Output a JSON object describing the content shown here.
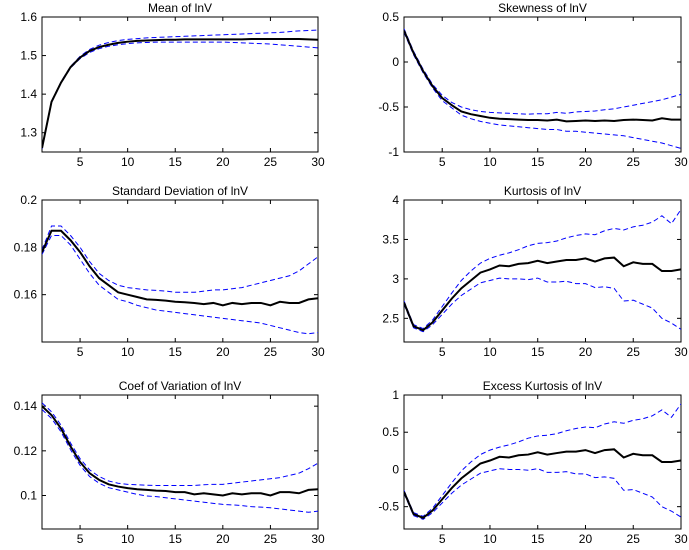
{
  "figure": {
    "background": "#ffffff",
    "series_colors": {
      "mean": "#000000",
      "bands": "#0000ff"
    }
  },
  "chart_data": [
    {
      "type": "line",
      "title": "Mean of lnV",
      "xlim": [
        1,
        30
      ],
      "ylim": [
        1.25,
        1.6
      ],
      "xticks": [
        5,
        10,
        15,
        20,
        25,
        30
      ],
      "yticks": [
        1.3,
        1.4,
        1.5,
        1.6
      ],
      "x": [
        1,
        2,
        3,
        4,
        5,
        6,
        7,
        8,
        9,
        10,
        11,
        12,
        13,
        14,
        15,
        16,
        17,
        18,
        19,
        20,
        21,
        22,
        23,
        24,
        25,
        26,
        27,
        28,
        29,
        30
      ],
      "series": [
        {
          "style": "solid",
          "color": "#000000",
          "values": [
            1.26,
            1.38,
            1.43,
            1.47,
            1.495,
            1.512,
            1.522,
            1.528,
            1.533,
            1.536,
            1.538,
            1.539,
            1.54,
            1.541,
            1.541,
            1.542,
            1.542,
            1.542,
            1.542,
            1.542,
            1.542,
            1.542,
            1.543,
            1.543,
            1.543,
            1.543,
            1.543,
            1.543,
            1.542,
            1.541
          ]
        },
        {
          "style": "dashed",
          "color": "#0000ff",
          "values": [
            1.262,
            1.382,
            1.432,
            1.472,
            1.498,
            1.516,
            1.527,
            1.534,
            1.539,
            1.542,
            1.544,
            1.546,
            1.547,
            1.548,
            1.549,
            1.55,
            1.551,
            1.552,
            1.553,
            1.554,
            1.555,
            1.556,
            1.557,
            1.558,
            1.559,
            1.56,
            1.562,
            1.564,
            1.565,
            1.566
          ]
        },
        {
          "style": "dashed",
          "color": "#0000ff",
          "values": [
            1.258,
            1.378,
            1.428,
            1.468,
            1.492,
            1.508,
            1.518,
            1.524,
            1.528,
            1.531,
            1.533,
            1.534,
            1.535,
            1.535,
            1.535,
            1.535,
            1.535,
            1.535,
            1.535,
            1.535,
            1.534,
            1.533,
            1.532,
            1.531,
            1.53,
            1.528,
            1.526,
            1.524,
            1.522,
            1.52
          ]
        }
      ]
    },
    {
      "type": "line",
      "title": "Skewness of lnV",
      "xlim": [
        1,
        30
      ],
      "ylim": [
        -1,
        0.5
      ],
      "xticks": [
        5,
        10,
        15,
        20,
        25,
        30
      ],
      "yticks": [
        -1,
        -0.5,
        0,
        0.5
      ],
      "x": [
        1,
        2,
        3,
        4,
        5,
        6,
        7,
        8,
        9,
        10,
        11,
        12,
        13,
        14,
        15,
        16,
        17,
        18,
        19,
        20,
        21,
        22,
        23,
        24,
        25,
        26,
        27,
        28,
        29,
        30
      ],
      "series": [
        {
          "style": "solid",
          "color": "#000000",
          "values": [
            0.35,
            0.1,
            -0.1,
            -0.27,
            -0.4,
            -0.48,
            -0.55,
            -0.58,
            -0.6,
            -0.62,
            -0.63,
            -0.635,
            -0.64,
            -0.645,
            -0.645,
            -0.65,
            -0.64,
            -0.66,
            -0.655,
            -0.65,
            -0.655,
            -0.65,
            -0.655,
            -0.645,
            -0.64,
            -0.645,
            -0.65,
            -0.625,
            -0.64,
            -0.64
          ]
        },
        {
          "style": "dashed",
          "color": "#0000ff",
          "values": [
            0.37,
            0.12,
            -0.08,
            -0.25,
            -0.37,
            -0.45,
            -0.5,
            -0.53,
            -0.55,
            -0.56,
            -0.565,
            -0.57,
            -0.575,
            -0.58,
            -0.575,
            -0.575,
            -0.56,
            -0.57,
            -0.555,
            -0.55,
            -0.545,
            -0.53,
            -0.52,
            -0.5,
            -0.48,
            -0.46,
            -0.44,
            -0.42,
            -0.39,
            -0.36
          ]
        },
        {
          "style": "dashed",
          "color": "#0000ff",
          "values": [
            0.33,
            0.08,
            -0.12,
            -0.29,
            -0.43,
            -0.51,
            -0.59,
            -0.63,
            -0.66,
            -0.68,
            -0.7,
            -0.71,
            -0.72,
            -0.73,
            -0.74,
            -0.75,
            -0.75,
            -0.77,
            -0.77,
            -0.78,
            -0.79,
            -0.8,
            -0.81,
            -0.82,
            -0.84,
            -0.86,
            -0.88,
            -0.9,
            -0.93,
            -0.96
          ]
        }
      ]
    },
    {
      "type": "line",
      "title": "Standard Deviation of lnV",
      "xlim": [
        1,
        30
      ],
      "ylim": [
        0.14,
        0.2
      ],
      "xticks": [
        5,
        10,
        15,
        20,
        25,
        30
      ],
      "yticks": [
        0.16,
        0.18,
        0.2
      ],
      "x": [
        1,
        2,
        3,
        4,
        5,
        6,
        7,
        8,
        9,
        10,
        11,
        12,
        13,
        14,
        15,
        16,
        17,
        18,
        19,
        20,
        21,
        22,
        23,
        24,
        25,
        26,
        27,
        28,
        29,
        30
      ],
      "series": [
        {
          "style": "solid",
          "color": "#000000",
          "values": [
            0.178,
            0.187,
            0.187,
            0.183,
            0.178,
            0.172,
            0.167,
            0.164,
            0.161,
            0.16,
            0.159,
            0.158,
            0.1578,
            0.1575,
            0.157,
            0.1568,
            0.1565,
            0.156,
            0.1565,
            0.1555,
            0.1565,
            0.156,
            0.1565,
            0.1565,
            0.1555,
            0.157,
            0.1565,
            0.1565,
            0.158,
            0.1585
          ]
        },
        {
          "style": "dashed",
          "color": "#0000ff",
          "values": [
            0.179,
            0.189,
            0.189,
            0.185,
            0.18,
            0.174,
            0.169,
            0.166,
            0.164,
            0.163,
            0.1625,
            0.162,
            0.1618,
            0.1615,
            0.161,
            0.161,
            0.161,
            0.1615,
            0.162,
            0.162,
            0.1625,
            0.163,
            0.164,
            0.165,
            0.166,
            0.167,
            0.168,
            0.17,
            0.173,
            0.176
          ]
        },
        {
          "style": "dashed",
          "color": "#0000ff",
          "values": [
            0.177,
            0.185,
            0.185,
            0.181,
            0.175,
            0.169,
            0.164,
            0.161,
            0.158,
            0.157,
            0.1555,
            0.1545,
            0.1535,
            0.153,
            0.1525,
            0.152,
            0.1515,
            0.151,
            0.1505,
            0.15,
            0.1495,
            0.149,
            0.1485,
            0.148,
            0.147,
            0.146,
            0.145,
            0.144,
            0.1435,
            0.144
          ]
        }
      ]
    },
    {
      "type": "line",
      "title": "Kurtosis of lnV",
      "xlim": [
        1,
        30
      ],
      "ylim": [
        2.2,
        4
      ],
      "xticks": [
        5,
        10,
        15,
        20,
        25,
        30
      ],
      "yticks": [
        2.5,
        3,
        3.5,
        4
      ],
      "x": [
        1,
        2,
        3,
        4,
        5,
        6,
        7,
        8,
        9,
        10,
        11,
        12,
        13,
        14,
        15,
        16,
        17,
        18,
        19,
        20,
        21,
        22,
        23,
        24,
        25,
        26,
        27,
        28,
        29,
        30
      ],
      "series": [
        {
          "style": "solid",
          "color": "#000000",
          "values": [
            2.7,
            2.4,
            2.35,
            2.45,
            2.6,
            2.75,
            2.88,
            2.98,
            3.08,
            3.12,
            3.17,
            3.16,
            3.19,
            3.2,
            3.23,
            3.2,
            3.22,
            3.24,
            3.24,
            3.26,
            3.22,
            3.26,
            3.27,
            3.16,
            3.21,
            3.19,
            3.19,
            3.1,
            3.1,
            3.12
          ]
        },
        {
          "style": "dashed",
          "color": "#0000ff",
          "values": [
            2.72,
            2.42,
            2.37,
            2.48,
            2.65,
            2.82,
            2.98,
            3.1,
            3.2,
            3.26,
            3.3,
            3.33,
            3.37,
            3.42,
            3.45,
            3.46,
            3.48,
            3.52,
            3.55,
            3.57,
            3.56,
            3.61,
            3.64,
            3.62,
            3.66,
            3.68,
            3.72,
            3.8,
            3.7,
            3.88
          ]
        },
        {
          "style": "dashed",
          "color": "#0000ff",
          "values": [
            2.68,
            2.38,
            2.33,
            2.42,
            2.55,
            2.68,
            2.79,
            2.87,
            2.95,
            2.98,
            3.01,
            3,
            3,
            2.99,
            3.01,
            2.96,
            2.96,
            2.97,
            2.94,
            2.94,
            2.89,
            2.9,
            2.88,
            2.72,
            2.73,
            2.68,
            2.63,
            2.5,
            2.44,
            2.36
          ]
        }
      ]
    },
    {
      "type": "line",
      "title": "Coef of Variation of lnV",
      "xlim": [
        1,
        30
      ],
      "ylim": [
        0.085,
        0.145
      ],
      "xticks": [
        5,
        10,
        15,
        20,
        25,
        30
      ],
      "yticks": [
        0.1,
        0.12,
        0.14
      ],
      "x": [
        1,
        2,
        3,
        4,
        5,
        6,
        7,
        8,
        9,
        10,
        11,
        12,
        13,
        14,
        15,
        16,
        17,
        18,
        19,
        20,
        21,
        22,
        23,
        24,
        25,
        26,
        27,
        28,
        29,
        30
      ],
      "series": [
        {
          "style": "solid",
          "color": "#000000",
          "values": [
            0.14,
            0.136,
            0.13,
            0.122,
            0.115,
            0.11,
            0.107,
            0.105,
            0.104,
            0.1033,
            0.1028,
            0.1025,
            0.1022,
            0.102,
            0.1015,
            0.1015,
            0.1005,
            0.101,
            0.1005,
            0.1,
            0.101,
            0.1005,
            0.101,
            0.101,
            0.1,
            0.1015,
            0.1015,
            0.101,
            0.1025,
            0.1028
          ]
        },
        {
          "style": "dashed",
          "color": "#0000ff",
          "values": [
            0.1415,
            0.1375,
            0.1315,
            0.1235,
            0.1165,
            0.1115,
            0.1085,
            0.1065,
            0.1055,
            0.105,
            0.1048,
            0.1046,
            0.1045,
            0.1045,
            0.1045,
            0.1045,
            0.1045,
            0.1048,
            0.105,
            0.105,
            0.1055,
            0.106,
            0.1065,
            0.107,
            0.1075,
            0.108,
            0.109,
            0.11,
            0.112,
            0.1145
          ]
        },
        {
          "style": "dashed",
          "color": "#0000ff",
          "values": [
            0.1385,
            0.1345,
            0.1285,
            0.1205,
            0.1135,
            0.1085,
            0.1055,
            0.1035,
            0.1025,
            0.1015,
            0.1005,
            0.0998,
            0.0995,
            0.099,
            0.0985,
            0.098,
            0.0975,
            0.097,
            0.0965,
            0.096,
            0.0958,
            0.0955,
            0.095,
            0.0948,
            0.0945,
            0.094,
            0.0935,
            0.093,
            0.0925,
            0.093
          ]
        }
      ]
    },
    {
      "type": "line",
      "title": "Excess Kurtosis of lnV",
      "xlim": [
        1,
        30
      ],
      "ylim": [
        -0.8,
        1
      ],
      "xticks": [
        5,
        10,
        15,
        20,
        25,
        30
      ],
      "yticks": [
        -0.5,
        0,
        0.5,
        1
      ],
      "x": [
        1,
        2,
        3,
        4,
        5,
        6,
        7,
        8,
        9,
        10,
        11,
        12,
        13,
        14,
        15,
        16,
        17,
        18,
        19,
        20,
        21,
        22,
        23,
        24,
        25,
        26,
        27,
        28,
        29,
        30
      ],
      "series": [
        {
          "style": "solid",
          "color": "#000000",
          "values": [
            -0.3,
            -0.6,
            -0.65,
            -0.55,
            -0.4,
            -0.25,
            -0.12,
            -0.02,
            0.08,
            0.12,
            0.17,
            0.16,
            0.19,
            0.2,
            0.23,
            0.2,
            0.22,
            0.24,
            0.24,
            0.26,
            0.22,
            0.26,
            0.27,
            0.16,
            0.21,
            0.19,
            0.19,
            0.1,
            0.1,
            0.12
          ]
        },
        {
          "style": "dashed",
          "color": "#0000ff",
          "values": [
            -0.28,
            -0.58,
            -0.63,
            -0.52,
            -0.35,
            -0.18,
            -0.02,
            0.1,
            0.2,
            0.26,
            0.3,
            0.33,
            0.37,
            0.42,
            0.45,
            0.46,
            0.48,
            0.52,
            0.55,
            0.57,
            0.56,
            0.61,
            0.64,
            0.62,
            0.66,
            0.68,
            0.72,
            0.8,
            0.7,
            0.88
          ]
        },
        {
          "style": "dashed",
          "color": "#0000ff",
          "values": [
            -0.32,
            -0.62,
            -0.67,
            -0.58,
            -0.45,
            -0.32,
            -0.21,
            -0.13,
            -0.05,
            -0.02,
            0.01,
            0,
            0,
            -0.01,
            0.01,
            -0.04,
            -0.04,
            -0.03,
            -0.06,
            -0.06,
            -0.11,
            -0.1,
            -0.12,
            -0.28,
            -0.27,
            -0.32,
            -0.37,
            -0.5,
            -0.56,
            -0.64
          ]
        }
      ]
    }
  ]
}
